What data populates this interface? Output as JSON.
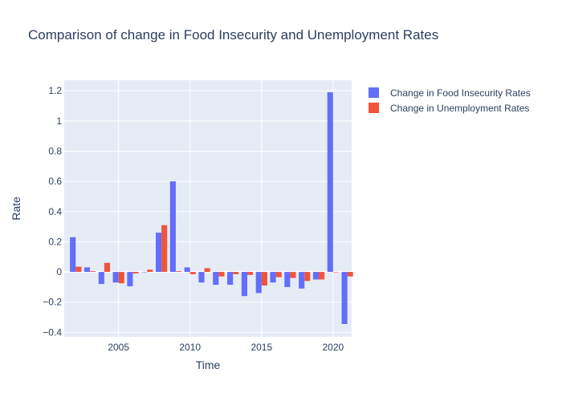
{
  "colors": {
    "plot_bg": "#e5ecf6",
    "grid": "#ffffff",
    "text": "#2a3f5f",
    "food": "#636efa",
    "unemployment": "#ef553b"
  },
  "chart_data": {
    "type": "bar",
    "title": "Comparison of change in Food Insecurity and Unemployment Rates",
    "xlabel": "Time",
    "ylabel": "Rate",
    "xlim": [
      2001.2,
      2021.3
    ],
    "ylim": [
      -0.43,
      1.27
    ],
    "x_ticks": [
      2005,
      2010,
      2015,
      2020
    ],
    "y_ticks": [
      -0.4,
      -0.2,
      0,
      0.2,
      0.4,
      0.6,
      0.8,
      1,
      1.2
    ],
    "y_tick_labels": [
      "−0.4",
      "−0.2",
      "0",
      "0.2",
      "0.4",
      "0.6",
      "0.8",
      "1",
      "1.2"
    ],
    "x": [
      2002,
      2003,
      2004,
      2005,
      2006,
      2007,
      2008,
      2009,
      2010,
      2011,
      2012,
      2013,
      2014,
      2015,
      2016,
      2017,
      2018,
      2019,
      2020,
      2021
    ],
    "series": [
      {
        "name": "Change in Food Insecurity Rates",
        "values": [
          0.23,
          0.03,
          -0.08,
          -0.07,
          -0.095,
          0.0,
          0.26,
          0.6,
          0.03,
          -0.07,
          -0.085,
          -0.085,
          -0.16,
          -0.14,
          -0.07,
          -0.1,
          -0.11,
          -0.05,
          1.19,
          -0.345
        ]
      },
      {
        "name": "Change in Unemployment Rates",
        "values": [
          0.035,
          0.005,
          0.06,
          -0.075,
          -0.01,
          0.015,
          0.31,
          0.005,
          -0.015,
          0.025,
          -0.03,
          -0.015,
          -0.02,
          -0.09,
          -0.035,
          -0.04,
          -0.06,
          -0.05,
          0.0,
          -0.03
        ]
      }
    ],
    "legend_position": "top-right",
    "grid": true
  }
}
